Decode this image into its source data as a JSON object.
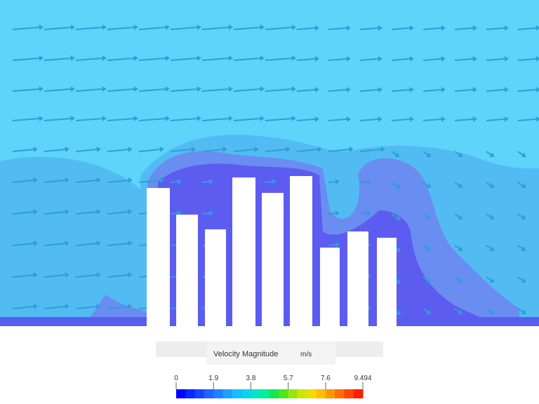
{
  "legend": {
    "title": "Velocity Magnitude",
    "unit": "m/s",
    "ticks": [
      0,
      1.9,
      3.8,
      5.7,
      7.6,
      9.494
    ]
  }
}
